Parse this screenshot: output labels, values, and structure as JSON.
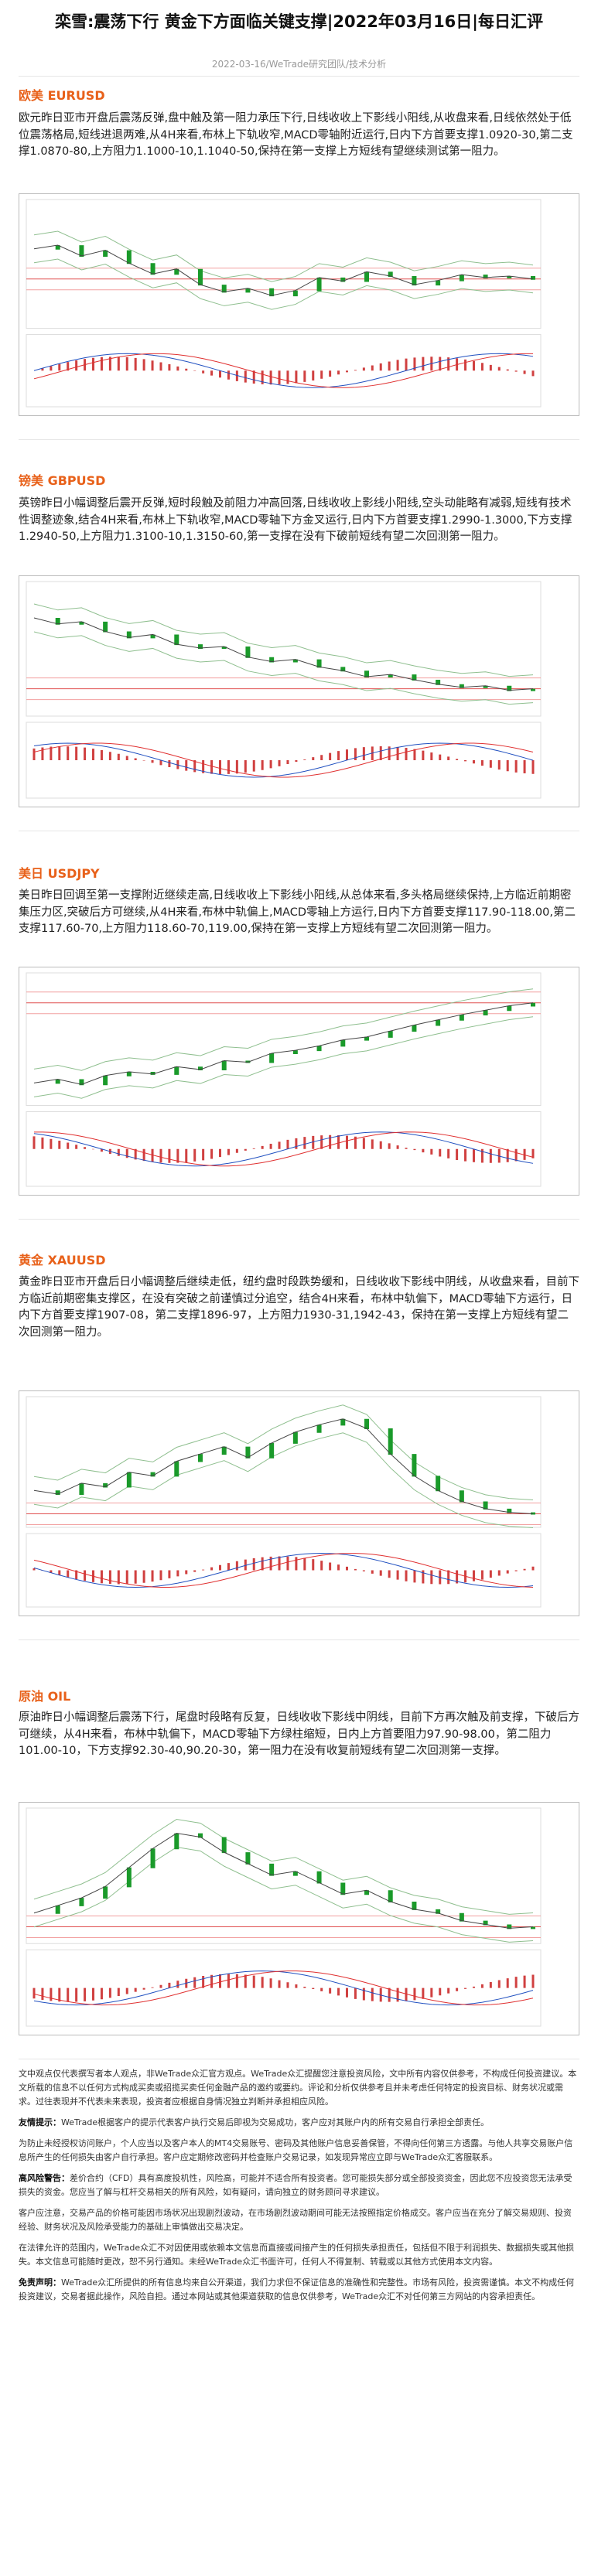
{
  "header": {
    "title": "栾雪:震荡下行 黄金下方面临关键支撑|2022年03月16日|每日汇评",
    "meta": "2022-03-16/WeTrade研究团队/技术分析"
  },
  "sections": [
    {
      "heading": "欧美 EURUSD",
      "body": "欧元昨日亚市开盘后震荡反弹,盘中触及第一阻力承压下行,日线收收上下影线小阳线,从收盘来看,日线依然处于低位震荡格局,短线进退两难,从4H来看,布林上下轨收窄,MACD零轴附近运行,日内下方首要支撑1.0920-30,第二支撑1.0870-80,上方阻力1.1000-10,1.1040-50,保持在第一支撑上方短线有望继续测试第一阻力。"
    },
    {
      "heading": "镑美 GBPUSD",
      "body": "英镑昨日小幅调整后震开反弹,短时段触及前阻力冲高回落,日线收收上影线小阳线,空头动能略有减弱,短线有技术性调整迹象,结合4H来看,布林上下轨收窄,MACD零轴下方金叉运行,日内下方首要支撑1.2990-1.3000,下方支撑1.2940-50,上方阻力1.3100-10,1.3150-60,第一支撑在没有下破前短线有望二次回测第一阻力。"
    },
    {
      "heading": "美日 USDJPY",
      "body": "美日昨日回调至第一支撑附近继续走高,日线收收上下影线小阳线,从总体来看,多头格局继续保持,上方临近前期密集压力区,突破后方可继续,从4H来看,布林中轨偏上,MACD零轴上方运行,日内下方首要支撑117.90-118.00,第二支撑117.60-70,上方阻力118.60-70,119.00,保持在第一支撑上方短线有望二次回测第一阻力。"
    },
    {
      "heading": "黄金 XAUUSD",
      "body": "黄金昨日亚市开盘后日小幅调整后继续走低，纽约盘时段跌势缓和，日线收收下影线中阴线，从收盘来看，目前下方临近前期密集支撑区，在没有突破之前谨慎过分追空，结合4H来看，布林中轨偏下，MACD零轴下方运行，日内下方首要支撑1907-08，第二支撑1896-97，上方阻力1930-31,1942-43，保持在第一支撑上方短线有望二次回测第一阻力。"
    },
    {
      "heading": "原油 OIL",
      "body": "原油昨日小幅调整后震荡下行，尾盘时段略有反复，日线收收下影线中阴线，目前下方再次触及前支撑，下破后方可继续，从4H来看，布林中轨偏下，MACD零轴下方绿柱缩短，日内上方首要阻力97.90-98.00，第二阻力101.00-10，下方支撑92.30-40,90.20-30，第一阻力在没有收复前短线有望二次回测第一支撑。"
    }
  ],
  "disclaimer": [
    {
      "text": "文中观点仅代表撰写者本人观点，非WeTrade众汇官方观点。WeTrade众汇提醒您注意投资风险，文中所有内容仅供参考，不构成任何投资建议。本文所载的信息不以任何方式构成买卖或招揽买卖任何金融产品的邀约或要约。评论和分析仅供参考且并未考虑任何特定的投资目标、财务状况或需求。过往表现并不代表未来表现，投资者应根据自身情况独立判断并承担相应风险。"
    },
    {
      "label": "友情提示：",
      "text": "WeTrade根据客户的提示代表客户执行交易后即视为交易成功，客户应对其账户内的所有交易自行承担全部责任。"
    },
    {
      "text": "为防止未经授权访问账户，个人应当以及客户本人的MT4交易账号、密码及其他账户信息妥善保管，不得向任何第三方透露。与他人共享交易账户信息所产生的任何损失由客户自行承担。客户应定期修改密码并检查账户交易记录，如发现异常应立即与WeTrade众汇客服联系。"
    },
    {
      "label": "高风险警告：",
      "text": "差价合约（CFD）具有高度投机性，风险高，可能并不适合所有投资者。您可能损失部分或全部投资资金，因此您不应投资您无法承受损失的资金。您应当了解与杠杆交易相关的所有风险，如有疑问，请向独立的财务顾问寻求建议。"
    },
    {
      "text": "客户应注意，交易产品的价格可能因市场状况出现剧烈波动，在市场剧烈波动期间可能无法按照指定价格成交。客户应当在充分了解交易规则、投资经验、财务状况及风险承受能力的基础上审慎做出交易决定。"
    },
    {
      "text": "在法律允许的范围内，WeTrade众汇不对因使用或依赖本文信息而直接或间接产生的任何损失承担责任，包括但不限于利润损失、数据损失或其他损失。本文信息可能随时更改，恕不另行通知。未经WeTrade众汇书面许可，任何人不得复制、转载或以其他方式使用本文内容。"
    },
    {
      "label": "免责声明：",
      "text": "WeTrade众汇所提供的所有信息均来自公开渠道，我们力求但不保证信息的准确性和完整性。市场有风险，投资需谨慎。本文不构成任何投资建议，交易者据此操作，风险自担。通过本网站或其他渠道获取的信息仅供参考，WeTrade众汇不对任何第三方网站的内容承担责任。"
    }
  ]
}
